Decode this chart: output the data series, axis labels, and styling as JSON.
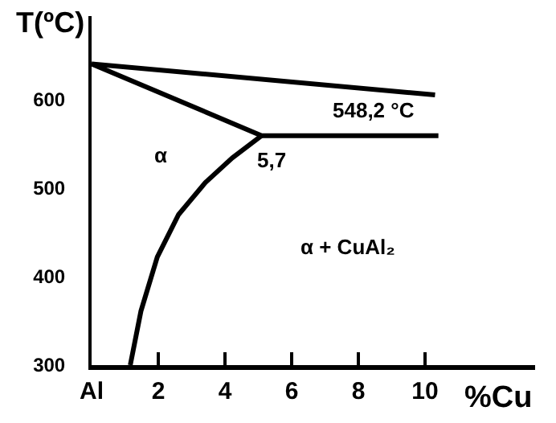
{
  "chart_data": {
    "type": "line",
    "xlabel": "%Cu",
    "ylabel": "T(ºC)",
    "xlim": [
      0,
      13.3
    ],
    "ylim": [
      300,
      694
    ],
    "xticks": [
      {
        "value": 0,
        "label": "Al"
      },
      2,
      4,
      6,
      8,
      10
    ],
    "yticks": [
      300,
      400,
      500,
      600
    ],
    "grid": false,
    "marker": "none",
    "line_style": "solid",
    "series": [
      {
        "color": "#000000",
        "x": [
          0,
          10.3
        ],
        "values": [
          640,
          605
        ]
      },
      {
        "color": "#000000",
        "x": [
          0,
          5.1,
          10.4
        ],
        "values": [
          640,
          559,
          559
        ]
      },
      {
        "color": "#000000",
        "x": [
          1.16,
          1.48,
          1.97,
          2.61,
          3.41,
          4.22,
          5.1
        ],
        "values": [
          300,
          361,
          422,
          470,
          506,
          534,
          559
        ]
      }
    ],
    "annotations": [
      "548,2 °C",
      "5,7",
      "α",
      "α + CuAl₂"
    ]
  }
}
